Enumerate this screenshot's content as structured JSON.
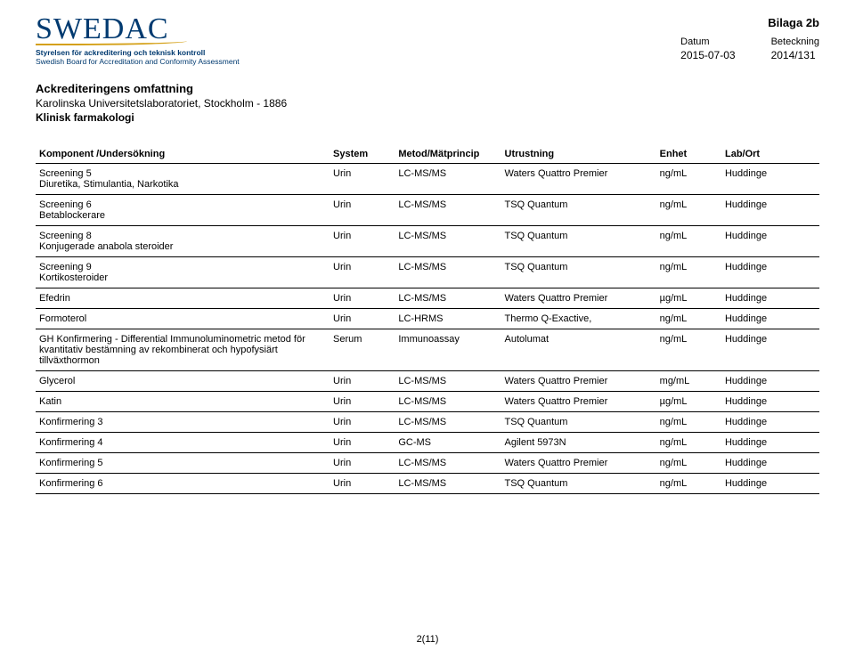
{
  "header": {
    "logo_text": "SWEDAC",
    "logo_tag1": "Styrelsen för ackreditering och teknisk kontroll",
    "logo_tag2": "Swedish Board for Accreditation and Conformity Assessment",
    "bilaga": "Bilaga 2b",
    "datum_label": "Datum",
    "datum_value": "2015-07-03",
    "beteckning_label": "Beteckning",
    "beteckning_value": "2014/131"
  },
  "doc": {
    "title": "Ackrediteringens omfattning",
    "sub1": "Karolinska Universitetslaboratoriet, Stockholm - 1886",
    "sub2": "Klinisk farmakologi"
  },
  "table": {
    "columns": [
      "Komponent /Undersökning",
      "System",
      "Metod/Mätprincip",
      "Utrustning",
      "Enhet",
      "Lab/Ort"
    ],
    "rows": [
      {
        "komp": "Screening 5",
        "komp_sub": "Diuretika, Stimulantia, Narkotika",
        "sys": "Urin",
        "met": "LC-MS/MS",
        "utr": "Waters Quattro Premier",
        "enh": "ng/mL",
        "lab": "Huddinge"
      },
      {
        "komp": "Screening 6",
        "komp_sub": "Betablockerare",
        "sys": "Urin",
        "met": "LC-MS/MS",
        "utr": "TSQ Quantum",
        "enh": "ng/mL",
        "lab": "Huddinge"
      },
      {
        "komp": "Screening 8",
        "komp_sub": "Konjugerade anabola steroider",
        "sys": "Urin",
        "met": "LC-MS/MS",
        "utr": "TSQ Quantum",
        "enh": "ng/mL",
        "lab": "Huddinge"
      },
      {
        "komp": "Screening 9",
        "komp_sub": "Kortikosteroider",
        "sys": "Urin",
        "met": "LC-MS/MS",
        "utr": "TSQ Quantum",
        "enh": "ng/mL",
        "lab": "Huddinge"
      },
      {
        "komp": "Efedrin",
        "komp_sub": "",
        "sys": "Urin",
        "met": "LC-MS/MS",
        "utr": "Waters Quattro Premier",
        "enh": "µg/mL",
        "lab": "Huddinge"
      },
      {
        "komp": "Formoterol",
        "komp_sub": "",
        "sys": "Urin",
        "met": "LC-HRMS",
        "utr": "Thermo Q-Exactive,",
        "enh": "ng/mL",
        "lab": "Huddinge"
      },
      {
        "komp": "GH Konfirmering - Differential Immunoluminometric metod för kvantitativ bestämning av rekombinerat och hypofysiärt tillväxthormon",
        "komp_sub": "",
        "sys": "Serum",
        "met": "Immunoassay",
        "utr": "Autolumat",
        "enh": "ng/mL",
        "lab": "Huddinge"
      },
      {
        "komp": "Glycerol",
        "komp_sub": "",
        "sys": "Urin",
        "met": "LC-MS/MS",
        "utr": "Waters Quattro Premier",
        "enh": "mg/mL",
        "lab": "Huddinge"
      },
      {
        "komp": "Katin",
        "komp_sub": "",
        "sys": "Urin",
        "met": "LC-MS/MS",
        "utr": "Waters Quattro Premier",
        "enh": "µg/mL",
        "lab": "Huddinge"
      },
      {
        "komp": "Konfirmering 3",
        "komp_sub": "",
        "sys": "Urin",
        "met": "LC-MS/MS",
        "utr": "TSQ Quantum",
        "enh": "ng/mL",
        "lab": "Huddinge"
      },
      {
        "komp": "Konfirmering 4",
        "komp_sub": "",
        "sys": "Urin",
        "met": "GC-MS",
        "utr": "Agilent 5973N",
        "enh": "ng/mL",
        "lab": "Huddinge"
      },
      {
        "komp": "Konfirmering 5",
        "komp_sub": "",
        "sys": "Urin",
        "met": "LC-MS/MS",
        "utr": "Waters Quattro Premier",
        "enh": "ng/mL",
        "lab": "Huddinge"
      },
      {
        "komp": "Konfirmering 6",
        "komp_sub": "",
        "sys": "Urin",
        "met": "LC-MS/MS",
        "utr": "TSQ Quantum",
        "enh": "ng/mL",
        "lab": "Huddinge"
      }
    ]
  },
  "footer": {
    "page": "2(11)"
  },
  "style": {
    "colors": {
      "brand_blue": "#003a70",
      "swoosh": "#d4a017",
      "text": "#000000",
      "bg": "#ffffff",
      "rule": "#000000"
    },
    "fontsize": {
      "logo": 34,
      "body": 12,
      "table": 11,
      "bilaga": 13
    }
  }
}
